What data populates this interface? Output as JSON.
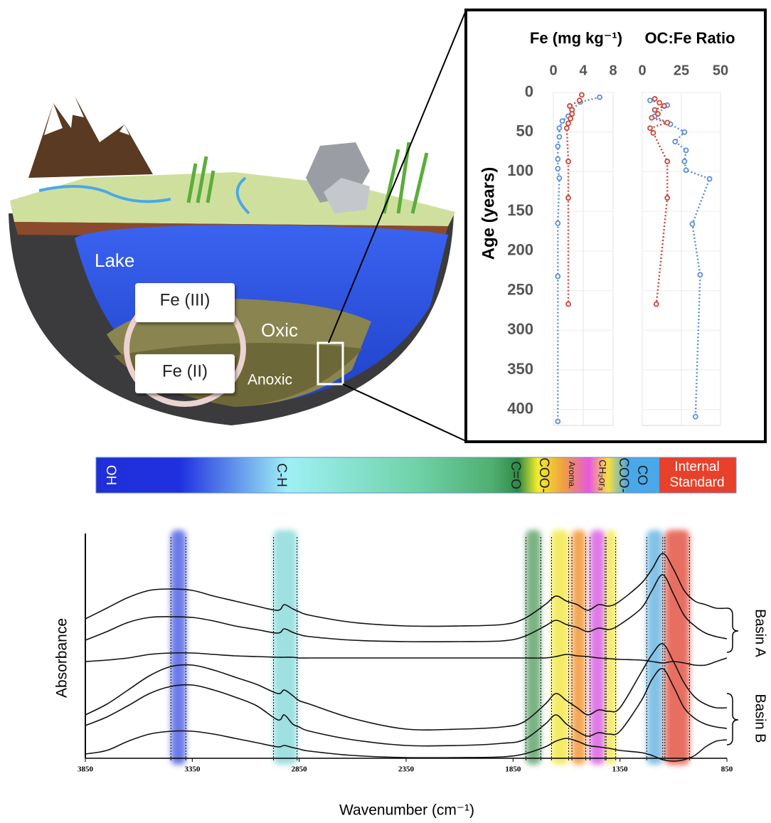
{
  "illustration": {
    "lake": "Lake",
    "fe3": "Fe (III)",
    "fe2": "Fe (II)",
    "oxic": "Oxic",
    "anoxic": "Anoxic"
  },
  "spectral_legend": {
    "labels": [
      "OH",
      "C-H",
      "C=O",
      "COO-",
      "Aroma.",
      "CH₂or₃",
      "COO-",
      "CO"
    ],
    "internal_standard": [
      "Internal",
      "Standard"
    ]
  },
  "chart_data": [
    {
      "type": "profile",
      "title": "Fe (mg kg⁻¹)",
      "y_label": "Age (years)",
      "xlim": [
        0,
        8
      ],
      "xticks": [
        0,
        4,
        8
      ],
      "ylim": [
        0,
        420
      ],
      "yticks": [
        0,
        50,
        100,
        150,
        200,
        250,
        300,
        350,
        400
      ],
      "y_reversed": true,
      "grid": true,
      "line_style": "dotted",
      "series": [
        {
          "color": "#5b8fd6",
          "x": [
            6.2,
            3.6,
            2.5,
            2.0,
            1.2,
            0.8,
            0.8,
            0.6,
            0.6,
            0.6,
            0.8,
            0.6,
            0.6,
            0.6
          ],
          "y": [
            6,
            12,
            22,
            30,
            36,
            45,
            56,
            68,
            84,
            96,
            108,
            165,
            232,
            415
          ]
        },
        {
          "color": "#c9453a",
          "x": [
            3.8,
            3.5,
            2.2,
            2.5,
            2.5,
            2.3,
            2.0,
            1.8,
            2.0,
            2.0,
            2.0
          ],
          "y": [
            3,
            10,
            17,
            22,
            27,
            33,
            39,
            45,
            87,
            133,
            267
          ]
        }
      ]
    },
    {
      "type": "profile",
      "title": "OC:Fe Ratio",
      "xlim": [
        0,
        50
      ],
      "xticks": [
        0,
        25,
        50
      ],
      "ylim": [
        0,
        420
      ],
      "y_reversed": true,
      "grid": true,
      "line_style": "dotted",
      "series": [
        {
          "color": "#5b8fd6",
          "x": [
            5,
            16,
            8,
            18,
            27,
            21,
            28,
            27,
            28,
            43,
            32,
            37,
            34
          ],
          "y": [
            10,
            16,
            30,
            40,
            50,
            62,
            73,
            87,
            98,
            109,
            166,
            230,
            409
          ]
        },
        {
          "color": "#c9453a",
          "x": [
            8,
            11,
            14,
            8,
            10,
            6,
            16,
            5,
            7,
            16,
            16,
            9
          ],
          "y": [
            8,
            13,
            17,
            22,
            27,
            32,
            38,
            45,
            51,
            87,
            133,
            267
          ]
        }
      ]
    },
    {
      "type": "spectra",
      "x_label": "Wavenumber (cm⁻¹)",
      "y_label": "Absorbance",
      "xlim": [
        3850,
        850
      ],
      "xticks": [
        3850,
        3350,
        2850,
        2350,
        1850,
        1350,
        850
      ],
      "ylim": [
        0,
        3.3
      ],
      "x": [
        3850,
        3750,
        3650,
        3550,
        3450,
        3350,
        3250,
        3150,
        3050,
        2950,
        2920,
        2880,
        2850,
        2800,
        2600,
        2350,
        2100,
        1900,
        1800,
        1700,
        1650,
        1600,
        1550,
        1500,
        1450,
        1400,
        1350,
        1250,
        1200,
        1150,
        1100,
        1050,
        1000,
        950,
        900,
        850
      ],
      "series": [
        {
          "color": "#111111",
          "values": [
            2.1,
            2.25,
            2.4,
            2.5,
            2.52,
            2.5,
            2.42,
            2.35,
            2.28,
            2.22,
            2.3,
            2.24,
            2.2,
            2.15,
            2.05,
            2.0,
            2.0,
            2.02,
            2.1,
            2.3,
            2.42,
            2.35,
            2.3,
            2.22,
            2.3,
            2.28,
            2.35,
            2.6,
            2.8,
            3.02,
            2.8,
            2.5,
            2.35,
            2.3,
            2.25,
            2.25
          ]
        },
        {
          "color": "#111111",
          "values": [
            1.8,
            1.92,
            2.05,
            2.12,
            2.13,
            2.12,
            2.07,
            2.0,
            1.95,
            1.9,
            1.96,
            1.91,
            1.88,
            1.85,
            1.8,
            1.78,
            1.78,
            1.79,
            1.85,
            2.0,
            2.08,
            2.02,
            1.98,
            1.92,
            1.97,
            1.95,
            2.02,
            2.25,
            2.5,
            2.72,
            2.45,
            2.15,
            2.0,
            1.9,
            1.85,
            1.82
          ]
        },
        {
          "color": "#111111",
          "values": [
            1.5,
            1.52,
            1.55,
            1.6,
            1.62,
            1.62,
            1.6,
            1.58,
            1.57,
            1.56,
            1.56,
            1.56,
            1.55,
            1.55,
            1.55,
            1.55,
            1.55,
            1.55,
            1.55,
            1.55,
            1.57,
            1.6,
            1.58,
            1.57,
            1.55,
            1.54,
            1.53,
            1.52,
            1.5,
            1.48,
            1.5,
            1.48,
            1.45,
            1.45,
            1.5,
            1.55
          ]
        },
        {
          "color": "#111111",
          "values": [
            0.75,
            0.9,
            1.1,
            1.3,
            1.43,
            1.45,
            1.38,
            1.28,
            1.18,
            1.05,
            1.1,
            1.02,
            0.95,
            0.9,
            0.7,
            0.55,
            0.55,
            0.58,
            0.65,
            0.9,
            1.05,
            0.95,
            0.85,
            0.75,
            0.82,
            0.8,
            0.85,
            1.35,
            1.6,
            1.75,
            1.5,
            1.2,
            1.0,
            0.9,
            0.85,
            0.85
          ]
        },
        {
          "color": "#111111",
          "values": [
            0.6,
            0.72,
            0.88,
            1.05,
            1.15,
            1.17,
            1.1,
            1.0,
            0.88,
            0.68,
            0.75,
            0.62,
            0.58,
            0.52,
            0.4,
            0.32,
            0.32,
            0.35,
            0.4,
            0.62,
            0.75,
            0.62,
            0.52,
            0.45,
            0.5,
            0.48,
            0.52,
            0.95,
            1.25,
            1.4,
            1.15,
            0.85,
            0.7,
            0.62,
            0.58,
            0.56
          ]
        },
        {
          "color": "#111111",
          "values": [
            0.2,
            0.25,
            0.38,
            0.48,
            0.52,
            0.52,
            0.48,
            0.42,
            0.36,
            0.3,
            0.32,
            0.29,
            0.27,
            0.24,
            0.18,
            0.15,
            0.15,
            0.16,
            0.2,
            0.3,
            0.38,
            0.42,
            0.38,
            0.32,
            0.3,
            0.28,
            0.25,
            0.22,
            0.18,
            0.12,
            0.1,
            0.12,
            0.18,
            0.3,
            0.38,
            0.4
          ]
        }
      ],
      "bands": [
        {
          "from": 3450,
          "to": 3380,
          "color": "#3b4fe0"
        },
        {
          "from": 2970,
          "to": 2860,
          "color": "#7fd6d6"
        },
        {
          "from": 1790,
          "to": 1720,
          "color": "#4e9a5a"
        },
        {
          "from": 1670,
          "to": 1590,
          "color": "#f0e530"
        },
        {
          "from": 1575,
          "to": 1510,
          "color": "#f08a1c"
        },
        {
          "from": 1490,
          "to": 1420,
          "color": "#d64ee0"
        },
        {
          "from": 1415,
          "to": 1370,
          "color": "#f0e530"
        },
        {
          "from": 1225,
          "to": 1150,
          "color": "#5aaee0"
        },
        {
          "from": 1140,
          "to": 1025,
          "color": "#e0402e"
        }
      ],
      "annotations": [
        "Basin A",
        "Basin B"
      ]
    }
  ]
}
